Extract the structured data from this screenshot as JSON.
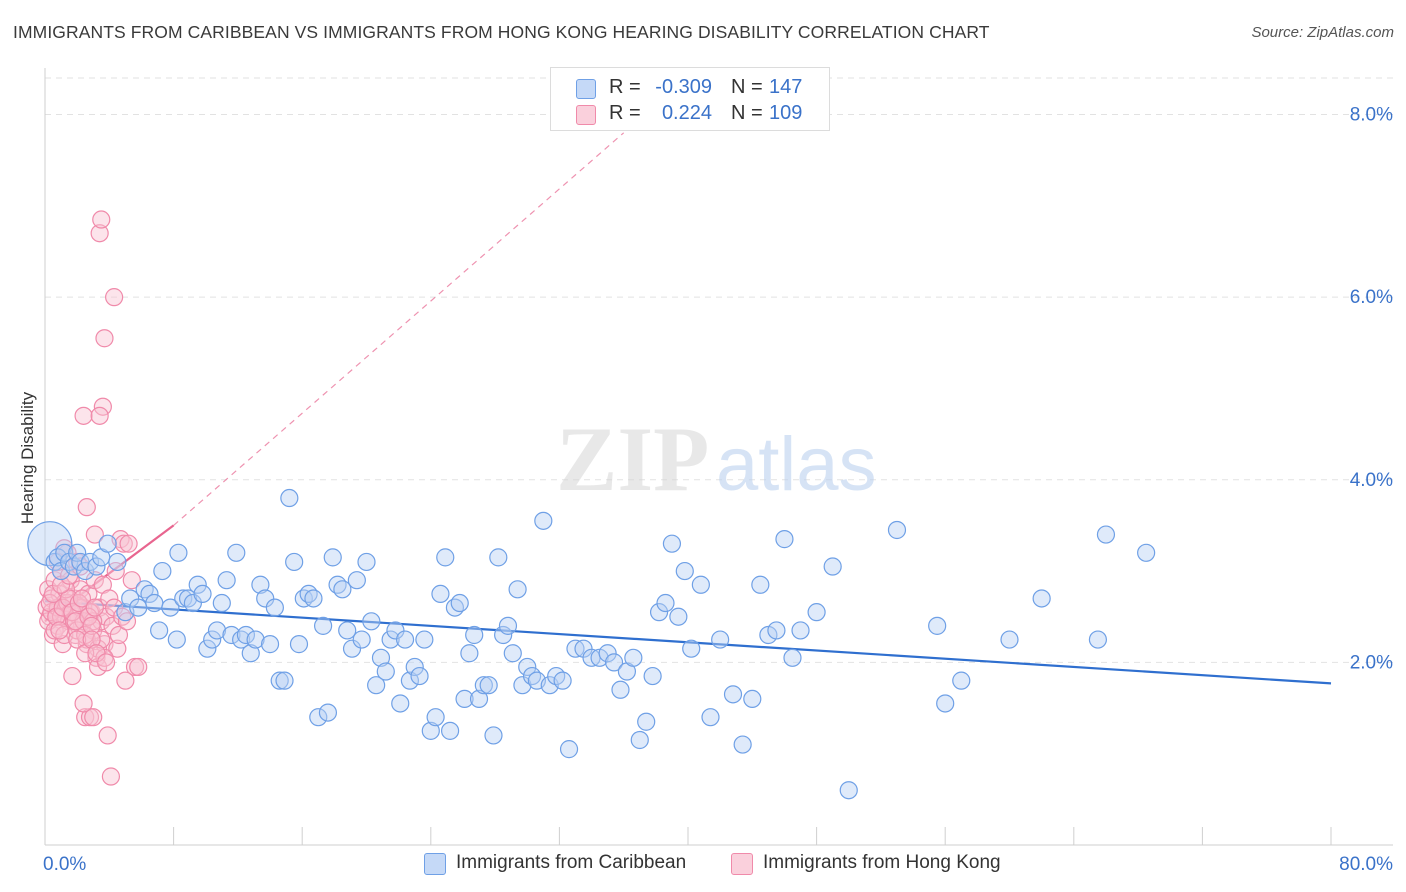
{
  "header": {
    "title": "IMMIGRANTS FROM CARIBBEAN VS IMMIGRANTS FROM HONG KONG HEARING DISABILITY CORRELATION CHART",
    "source": "Source: ZipAtlas.com"
  },
  "watermark": {
    "zip": "ZIP",
    "atlas": "atlas"
  },
  "legend": {
    "rows": [
      {
        "r_label": "R =",
        "r_value": "-0.309",
        "n_label": "N =",
        "n_value": "147"
      },
      {
        "r_label": "R =",
        "r_value": "0.224",
        "n_label": "N =",
        "n_value": "109"
      }
    ]
  },
  "bottom_legend": {
    "series1": "Immigrants from Caribbean",
    "series2": "Immigrants from Hong Kong"
  },
  "colors": {
    "blue": "#6fa0e6",
    "blue_fill": "#b9d0f5",
    "blue_line": "#2f6fcf",
    "pink": "#f08aaa",
    "pink_fill": "#f8c3d3",
    "pink_line": "#e8658f",
    "axis_label": "#3a72c9"
  },
  "chart_data": {
    "type": "scatter",
    "title": "IMMIGRANTS FROM CARIBBEAN VS IMMIGRANTS FROM HONG KONG HEARING DISABILITY CORRELATION CHART",
    "xlabel": "",
    "ylabel": "Hearing Disability",
    "xlim": [
      0,
      80
    ],
    "ylim": [
      0,
      8.4
    ],
    "x_tick_labels": [
      "0.0%",
      "80.0%"
    ],
    "y_ticks": [
      2,
      4,
      6,
      8
    ],
    "y_tick_labels": [
      "2.0%",
      "4.0%",
      "6.0%",
      "8.0%"
    ],
    "grid": "horizontal dashed",
    "legend_position": "top-center",
    "series": [
      {
        "name": "Immigrants from Caribbean",
        "R": -0.309,
        "N": 147,
        "trend": {
          "x": [
            0,
            80
          ],
          "y": [
            2.67,
            1.77
          ]
        },
        "points": [
          [
            0.3,
            3.3
          ],
          [
            0.6,
            3.1
          ],
          [
            0.8,
            3.15
          ],
          [
            1.0,
            3.0
          ],
          [
            1.2,
            3.2
          ],
          [
            1.5,
            3.1
          ],
          [
            1.8,
            3.05
          ],
          [
            2.0,
            3.2
          ],
          [
            2.2,
            3.1
          ],
          [
            2.5,
            3.0
          ],
          [
            2.8,
            3.1
          ],
          [
            3.2,
            3.05
          ],
          [
            3.5,
            3.15
          ],
          [
            3.9,
            3.3
          ],
          [
            4.5,
            3.1
          ],
          [
            5.0,
            2.55
          ],
          [
            5.3,
            2.7
          ],
          [
            5.8,
            2.6
          ],
          [
            6.2,
            2.8
          ],
          [
            6.5,
            2.75
          ],
          [
            6.8,
            2.65
          ],
          [
            7.1,
            2.35
          ],
          [
            7.3,
            3.0
          ],
          [
            7.8,
            2.6
          ],
          [
            8.2,
            2.25
          ],
          [
            8.3,
            3.2
          ],
          [
            8.6,
            2.7
          ],
          [
            8.9,
            2.7
          ],
          [
            9.2,
            2.65
          ],
          [
            9.5,
            2.85
          ],
          [
            9.8,
            2.75
          ],
          [
            10.1,
            2.15
          ],
          [
            10.4,
            2.25
          ],
          [
            10.7,
            2.35
          ],
          [
            11.0,
            2.65
          ],
          [
            11.3,
            2.9
          ],
          [
            11.6,
            2.3
          ],
          [
            11.9,
            3.2
          ],
          [
            12.2,
            2.25
          ],
          [
            12.5,
            2.3
          ],
          [
            12.8,
            2.1
          ],
          [
            13.1,
            2.25
          ],
          [
            13.4,
            2.85
          ],
          [
            13.7,
            2.7
          ],
          [
            14.0,
            2.2
          ],
          [
            14.3,
            2.6
          ],
          [
            14.6,
            1.8
          ],
          [
            14.9,
            1.8
          ],
          [
            15.2,
            3.8
          ],
          [
            15.5,
            3.1
          ],
          [
            15.8,
            2.2
          ],
          [
            16.1,
            2.7
          ],
          [
            16.4,
            2.75
          ],
          [
            16.7,
            2.7
          ],
          [
            17.0,
            1.4
          ],
          [
            17.3,
            2.4
          ],
          [
            17.6,
            1.45
          ],
          [
            17.9,
            3.15
          ],
          [
            18.2,
            2.85
          ],
          [
            18.5,
            2.8
          ],
          [
            18.8,
            2.35
          ],
          [
            19.1,
            2.15
          ],
          [
            19.4,
            2.9
          ],
          [
            19.7,
            2.25
          ],
          [
            20.0,
            3.1
          ],
          [
            20.3,
            2.45
          ],
          [
            20.6,
            1.75
          ],
          [
            20.9,
            2.05
          ],
          [
            21.2,
            1.9
          ],
          [
            21.5,
            2.25
          ],
          [
            21.8,
            2.35
          ],
          [
            22.1,
            1.55
          ],
          [
            22.4,
            2.25
          ],
          [
            22.7,
            1.8
          ],
          [
            23.0,
            1.95
          ],
          [
            23.3,
            1.85
          ],
          [
            23.6,
            2.25
          ],
          [
            24.0,
            1.25
          ],
          [
            24.3,
            1.4
          ],
          [
            24.6,
            2.75
          ],
          [
            24.9,
            3.15
          ],
          [
            25.2,
            1.25
          ],
          [
            25.5,
            2.6
          ],
          [
            25.8,
            2.65
          ],
          [
            26.1,
            1.6
          ],
          [
            26.4,
            2.1
          ],
          [
            26.7,
            2.3
          ],
          [
            27.0,
            1.6
          ],
          [
            27.3,
            1.75
          ],
          [
            27.6,
            1.75
          ],
          [
            27.9,
            1.2
          ],
          [
            28.2,
            3.15
          ],
          [
            28.5,
            2.3
          ],
          [
            28.8,
            2.4
          ],
          [
            29.1,
            2.1
          ],
          [
            29.4,
            2.8
          ],
          [
            29.7,
            1.75
          ],
          [
            30.0,
            1.95
          ],
          [
            30.3,
            1.85
          ],
          [
            30.6,
            1.8
          ],
          [
            31.0,
            3.55
          ],
          [
            31.4,
            1.75
          ],
          [
            31.8,
            1.85
          ],
          [
            32.2,
            1.8
          ],
          [
            32.6,
            1.05
          ],
          [
            33.0,
            2.15
          ],
          [
            33.5,
            2.15
          ],
          [
            34.0,
            2.05
          ],
          [
            34.5,
            2.05
          ],
          [
            35.0,
            2.1
          ],
          [
            35.4,
            2.0
          ],
          [
            35.8,
            1.7
          ],
          [
            36.2,
            1.9
          ],
          [
            36.6,
            2.05
          ],
          [
            37.0,
            1.15
          ],
          [
            37.4,
            1.35
          ],
          [
            37.8,
            1.85
          ],
          [
            38.2,
            2.55
          ],
          [
            38.6,
            2.65
          ],
          [
            39.0,
            3.3
          ],
          [
            39.4,
            2.5
          ],
          [
            39.8,
            3.0
          ],
          [
            40.2,
            2.15
          ],
          [
            40.8,
            2.85
          ],
          [
            41.4,
            1.4
          ],
          [
            42.0,
            2.25
          ],
          [
            42.8,
            1.65
          ],
          [
            43.4,
            1.1
          ],
          [
            44.0,
            1.6
          ],
          [
            44.5,
            2.85
          ],
          [
            45.0,
            2.3
          ],
          [
            45.5,
            2.35
          ],
          [
            46.0,
            3.35
          ],
          [
            46.5,
            2.05
          ],
          [
            47.0,
            2.35
          ],
          [
            48.0,
            2.55
          ],
          [
            49.0,
            3.05
          ],
          [
            50.0,
            0.6
          ],
          [
            53.0,
            3.45
          ],
          [
            55.5,
            2.4
          ],
          [
            56.0,
            1.55
          ],
          [
            57.0,
            1.8
          ],
          [
            60.0,
            2.25
          ],
          [
            62.0,
            2.7
          ],
          [
            65.5,
            2.25
          ],
          [
            66.0,
            3.4
          ],
          [
            68.5,
            3.2
          ]
        ]
      },
      {
        "name": "Immigrants from Hong Kong",
        "R": 0.224,
        "N": 109,
        "trend": {
          "x": [
            0,
            8
          ],
          "y": [
            2.45,
            3.5
          ]
        },
        "trend_extended": {
          "x": [
            8,
            36
          ],
          "y": [
            3.5,
            7.8
          ]
        },
        "points": [
          [
            0.1,
            2.6
          ],
          [
            0.2,
            2.8
          ],
          [
            0.3,
            2.5
          ],
          [
            0.4,
            2.7
          ],
          [
            0.5,
            2.3
          ],
          [
            0.6,
            2.9
          ],
          [
            0.7,
            2.55
          ],
          [
            0.8,
            2.4
          ],
          [
            0.9,
            2.75
          ],
          [
            1.0,
            3.0
          ],
          [
            1.1,
            2.2
          ],
          [
            1.2,
            2.65
          ],
          [
            1.3,
            2.5
          ],
          [
            1.4,
            3.2
          ],
          [
            1.5,
            2.45
          ],
          [
            1.6,
            2.9
          ],
          [
            1.7,
            1.85
          ],
          [
            1.8,
            2.7
          ],
          [
            1.9,
            2.3
          ],
          [
            2.0,
            3.1
          ],
          [
            2.1,
            2.5
          ],
          [
            2.2,
            2.8
          ],
          [
            2.3,
            2.4
          ],
          [
            2.4,
            2.6
          ],
          [
            2.5,
            1.4
          ],
          [
            2.6,
            2.2
          ],
          [
            2.7,
            2.75
          ],
          [
            2.8,
            1.4
          ],
          [
            2.9,
            2.55
          ],
          [
            3.0,
            2.35
          ],
          [
            3.1,
            2.9
          ],
          [
            3.2,
            2.05
          ],
          [
            3.3,
            1.95
          ],
          [
            3.4,
            2.6
          ],
          [
            3.5,
            2.45
          ],
          [
            3.6,
            2.85
          ],
          [
            3.7,
            2.2
          ],
          [
            3.8,
            2.5
          ],
          [
            3.9,
            1.2
          ],
          [
            4.0,
            2.7
          ],
          [
            4.1,
            0.75
          ],
          [
            4.2,
            2.4
          ],
          [
            4.3,
            2.6
          ],
          [
            4.4,
            3.0
          ],
          [
            4.5,
            2.15
          ],
          [
            4.6,
            2.3
          ],
          [
            4.7,
            3.35
          ],
          [
            4.8,
            2.5
          ],
          [
            4.9,
            3.3
          ],
          [
            5.0,
            1.8
          ],
          [
            5.1,
            2.45
          ],
          [
            5.2,
            3.3
          ],
          [
            5.4,
            2.9
          ],
          [
            5.6,
            1.95
          ],
          [
            5.8,
            1.95
          ],
          [
            0.2,
            2.45
          ],
          [
            0.4,
            2.55
          ],
          [
            0.6,
            2.35
          ],
          [
            0.8,
            2.6
          ],
          [
            1.0,
            2.5
          ],
          [
            1.2,
            2.3
          ],
          [
            1.4,
            2.65
          ],
          [
            1.6,
            2.55
          ],
          [
            1.8,
            2.45
          ],
          [
            2.0,
            2.35
          ],
          [
            2.2,
            2.6
          ],
          [
            2.4,
            2.45
          ],
          [
            2.6,
            2.25
          ],
          [
            2.8,
            2.55
          ],
          [
            3.0,
            2.45
          ],
          [
            0.3,
            2.65
          ],
          [
            0.5,
            2.75
          ],
          [
            0.7,
            2.5
          ],
          [
            0.9,
            2.35
          ],
          [
            1.1,
            2.6
          ],
          [
            1.3,
            2.8
          ],
          [
            1.5,
            2.7
          ],
          [
            1.7,
            2.55
          ],
          [
            1.9,
            2.45
          ],
          [
            2.1,
            2.65
          ],
          [
            2.3,
            2.7
          ],
          [
            2.5,
            2.3
          ],
          [
            2.7,
            2.5
          ],
          [
            2.9,
            2.4
          ],
          [
            3.1,
            2.6
          ],
          [
            3.3,
            2.15
          ],
          [
            3.5,
            2.25
          ],
          [
            3.7,
            2.05
          ],
          [
            1.0,
            2.85
          ],
          [
            1.5,
            2.95
          ],
          [
            2.0,
            2.25
          ],
          [
            2.5,
            2.1
          ],
          [
            1.2,
            3.25
          ],
          [
            0.8,
            3.1
          ],
          [
            2.2,
            3.05
          ],
          [
            3.4,
            6.7
          ],
          [
            3.5,
            6.85
          ],
          [
            4.3,
            6.0
          ],
          [
            3.7,
            5.55
          ],
          [
            2.4,
            4.7
          ],
          [
            3.6,
            4.8
          ],
          [
            3.4,
            4.7
          ],
          [
            2.6,
            3.7
          ],
          [
            3.1,
            3.4
          ],
          [
            2.9,
            2.25
          ],
          [
            3.2,
            2.1
          ],
          [
            3.0,
            1.4
          ],
          [
            3.8,
            2.0
          ],
          [
            2.4,
            1.55
          ]
        ]
      }
    ]
  }
}
